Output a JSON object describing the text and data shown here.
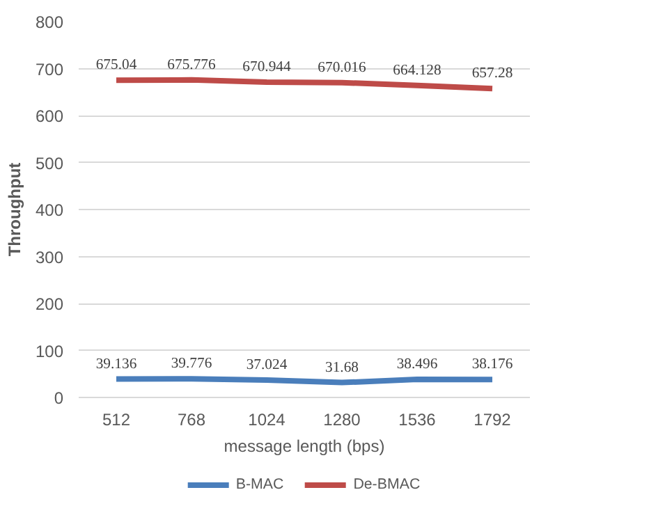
{
  "chart_data": {
    "type": "line",
    "xlabel": "message length (bps)",
    "ylabel": "Throughput",
    "categories": [
      "512",
      "768",
      "1024",
      "1280",
      "1536",
      "1792"
    ],
    "series": [
      {
        "name": "B-MAC",
        "color": "#4a7ebb",
        "values": [
          39.136,
          39.776,
          37.024,
          31.68,
          38.496,
          38.176
        ]
      },
      {
        "name": "De-BMAC",
        "color": "#be4b48",
        "values": [
          675.04,
          675.776,
          670.944,
          670.016,
          664.128,
          657.28
        ]
      }
    ],
    "ylim": [
      0,
      800
    ],
    "yticks": [
      0,
      100,
      200,
      300,
      400,
      500,
      600,
      700,
      800
    ],
    "grid": "y",
    "legend": "bottom",
    "data_labels": true,
    "marker": "none",
    "line_style": "solid"
  }
}
